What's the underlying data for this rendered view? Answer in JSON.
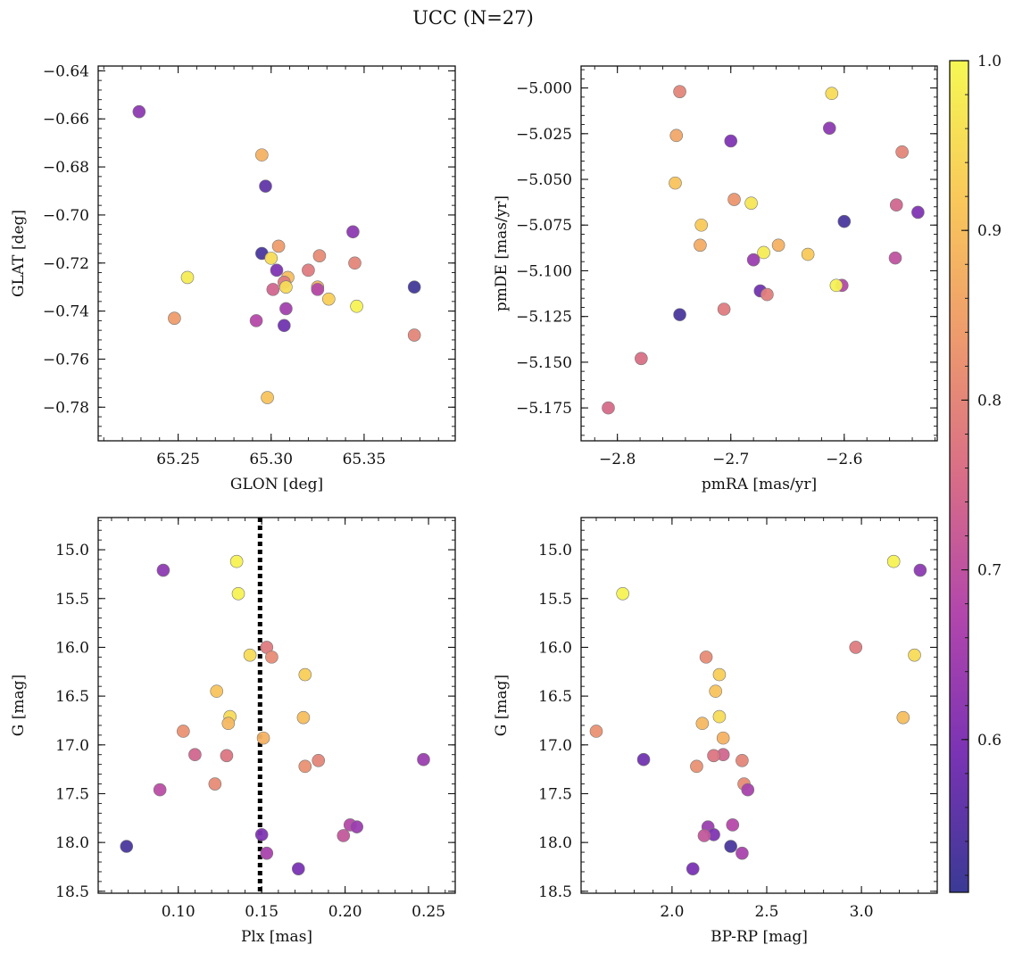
{
  "figure": {
    "title": "UCC (N=27)"
  },
  "colorbar": {
    "min": 0.51,
    "max": 1.0,
    "ticks": [
      "0.6",
      "0.7",
      "0.8",
      "0.9",
      "1.0"
    ],
    "colormap": "plasma",
    "colormap_stops": [
      "#3a3a95",
      "#7a33b4",
      "#b246ac",
      "#d86d87",
      "#ee9a6d",
      "#f9c85a",
      "#f5f853"
    ]
  },
  "chart_data": [
    {
      "type": "scatter",
      "xlabel": "GLON [deg]",
      "ylabel": "GLAT [deg]",
      "xlim": [
        65.207,
        65.399
      ],
      "ylim": [
        -0.794,
        -0.638
      ],
      "xticks": [
        "65.25",
        "65.30",
        "65.35"
      ],
      "yticks": [
        "−0.64",
        "−0.66",
        "−0.68",
        "−0.70",
        "−0.72",
        "−0.74",
        "−0.76",
        "−0.78"
      ],
      "x": [
        65.229,
        65.295,
        65.297,
        65.295,
        65.304,
        65.3,
        65.255,
        65.303,
        65.309,
        65.32,
        65.326,
        65.344,
        65.345,
        65.307,
        65.301,
        65.308,
        65.325,
        65.325,
        65.331,
        65.308,
        65.248,
        65.292,
        65.307,
        65.346,
        65.298,
        65.377,
        65.377
      ],
      "y": [
        -0.657,
        -0.675,
        -0.688,
        -0.716,
        -0.713,
        -0.718,
        -0.726,
        -0.723,
        -0.726,
        -0.723,
        -0.717,
        -0.707,
        -0.72,
        -0.728,
        -0.731,
        -0.73,
        -0.73,
        -0.731,
        -0.735,
        -0.739,
        -0.743,
        -0.744,
        -0.746,
        -0.738,
        -0.776,
        -0.73,
        -0.75
      ],
      "c": [
        0.62,
        0.88,
        0.56,
        0.53,
        0.84,
        0.95,
        0.98,
        0.6,
        0.9,
        0.78,
        0.81,
        0.62,
        0.8,
        0.78,
        0.74,
        0.95,
        0.88,
        0.68,
        0.93,
        0.65,
        0.84,
        0.68,
        0.58,
        0.99,
        0.91,
        0.52,
        0.8
      ]
    },
    {
      "type": "scatter",
      "xlabel": "pmRA [mas/yr]",
      "ylabel": "pmDE [mas/yr]",
      "xlim": [
        -2.832,
        -2.518
      ],
      "ylim": [
        -5.193,
        -4.988
      ],
      "xticks": [
        "−2.8",
        "−2.7",
        "−2.6"
      ],
      "yticks": [
        "−5.000",
        "−5.025",
        "−5.050",
        "−5.075",
        "−5.100",
        "−5.125",
        "−5.150",
        "−5.175"
      ],
      "x": [
        -2.745,
        -2.611,
        -2.748,
        -2.7,
        -2.613,
        -2.549,
        -2.749,
        -2.697,
        -2.682,
        -2.554,
        -2.535,
        -2.6,
        -2.726,
        -2.727,
        -2.658,
        -2.632,
        -2.671,
        -2.68,
        -2.555,
        -2.602,
        -2.607,
        -2.674,
        -2.668,
        -2.706,
        -2.745,
        -2.779,
        -2.808
      ],
      "y": [
        -5.002,
        -5.003,
        -5.026,
        -5.029,
        -5.022,
        -5.035,
        -5.052,
        -5.061,
        -5.063,
        -5.064,
        -5.068,
        -5.073,
        -5.075,
        -5.086,
        -5.086,
        -5.091,
        -5.09,
        -5.094,
        -5.093,
        -5.108,
        -5.108,
        -5.111,
        -5.113,
        -5.121,
        -5.124,
        -5.148,
        -5.175
      ],
      "c": [
        0.8,
        0.95,
        0.86,
        0.6,
        0.62,
        0.8,
        0.91,
        0.83,
        0.97,
        0.74,
        0.6,
        0.53,
        0.92,
        0.87,
        0.88,
        0.92,
        0.98,
        0.64,
        0.7,
        0.68,
        0.99,
        0.58,
        0.79,
        0.78,
        0.53,
        0.76,
        0.75
      ]
    },
    {
      "type": "scatter",
      "xlabel": "Plx [mas]",
      "ylabel": "G [mag]",
      "xlim": [
        0.052,
        0.266
      ],
      "ylim": [
        18.52,
        14.67
      ],
      "y_inverted": true,
      "vline": 0.149,
      "xticks": [
        "0.10",
        "0.15",
        "0.20",
        "0.25"
      ],
      "yticks": [
        "15.0",
        "15.5",
        "16.0",
        "16.5",
        "17.0",
        "17.5",
        "18.0",
        "18.5"
      ],
      "x": [
        0.135,
        0.091,
        0.136,
        0.153,
        0.156,
        0.143,
        0.176,
        0.123,
        0.131,
        0.13,
        0.175,
        0.103,
        0.151,
        0.11,
        0.129,
        0.247,
        0.184,
        0.176,
        0.122,
        0.089,
        0.203,
        0.207,
        0.199,
        0.15,
        0.069,
        0.153,
        0.172
      ],
      "y": [
        15.12,
        15.21,
        15.45,
        16.0,
        16.1,
        16.08,
        16.28,
        16.45,
        16.71,
        16.78,
        16.72,
        16.86,
        16.93,
        17.1,
        17.11,
        17.15,
        17.16,
        17.22,
        17.4,
        17.46,
        17.82,
        17.84,
        17.93,
        17.92,
        18.04,
        18.11,
        18.27
      ],
      "c": [
        0.99,
        0.62,
        0.99,
        0.78,
        0.81,
        0.95,
        0.93,
        0.91,
        0.95,
        0.89,
        0.9,
        0.82,
        0.88,
        0.74,
        0.77,
        0.64,
        0.8,
        0.82,
        0.81,
        0.69,
        0.68,
        0.64,
        0.71,
        0.6,
        0.53,
        0.66,
        0.59
      ]
    },
    {
      "type": "scatter",
      "xlabel": "BP-RP [mag]",
      "ylabel": "G [mag]",
      "xlim": [
        1.52,
        3.4
      ],
      "ylim": [
        18.52,
        14.67
      ],
      "y_inverted": true,
      "xticks": [
        "2.0",
        "2.5",
        "3.0"
      ],
      "yticks": [
        "15.0",
        "15.5",
        "16.0",
        "16.5",
        "17.0",
        "17.5",
        "18.0",
        "18.5"
      ],
      "x": [
        3.17,
        3.31,
        1.74,
        2.97,
        2.18,
        3.28,
        2.25,
        2.23,
        2.25,
        2.16,
        3.22,
        1.6,
        2.27,
        2.27,
        2.22,
        1.85,
        2.37,
        2.13,
        2.38,
        2.4,
        2.32,
        2.19,
        2.22,
        2.17,
        2.31,
        2.37,
        2.11
      ],
      "y": [
        15.12,
        15.21,
        15.45,
        16.0,
        16.1,
        16.08,
        16.28,
        16.45,
        16.71,
        16.78,
        16.72,
        16.86,
        16.93,
        17.1,
        17.11,
        17.15,
        17.16,
        17.22,
        17.4,
        17.46,
        17.82,
        17.84,
        17.92,
        17.93,
        18.04,
        18.11,
        18.27
      ],
      "c": [
        0.99,
        0.62,
        0.99,
        0.78,
        0.81,
        0.95,
        0.93,
        0.91,
        0.95,
        0.89,
        0.9,
        0.82,
        0.88,
        0.74,
        0.77,
        0.58,
        0.8,
        0.82,
        0.81,
        0.66,
        0.68,
        0.64,
        0.6,
        0.71,
        0.53,
        0.66,
        0.59
      ]
    }
  ]
}
